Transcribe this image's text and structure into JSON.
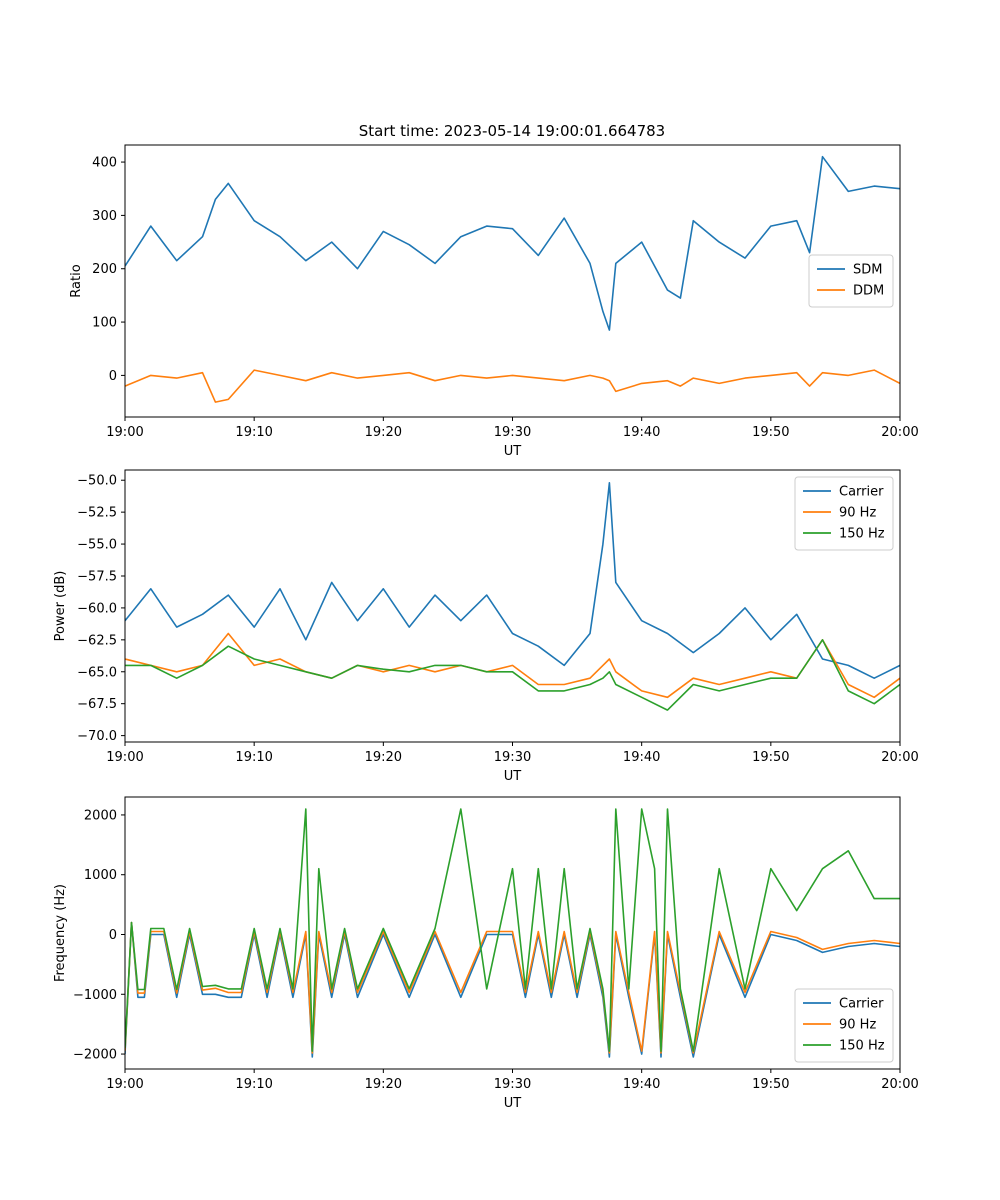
{
  "figure": {
    "title": "Start time: 2023-05-14 19:00:01.664783"
  },
  "chart_data": [
    {
      "type": "line",
      "xlabel": "UT",
      "ylabel": "Ratio",
      "xlim": [
        "19:00",
        "20:00"
      ],
      "ylim": [
        -78,
        432
      ],
      "x_ticks": [
        "19:00",
        "19:10",
        "19:20",
        "19:30",
        "19:40",
        "19:50",
        "20:00"
      ],
      "y_ticks": [
        0,
        100,
        200,
        300,
        400
      ],
      "legend": "center-right",
      "x": [
        "19:00",
        "19:02",
        "19:04",
        "19:06",
        "19:07",
        "19:08",
        "19:10",
        "19:12",
        "19:14",
        "19:16",
        "19:18",
        "19:20",
        "19:22",
        "19:24",
        "19:26",
        "19:28",
        "19:30",
        "19:32",
        "19:34",
        "19:36",
        "19:37",
        "19:37.5",
        "19:38",
        "19:40",
        "19:42",
        "19:43",
        "19:44",
        "19:46",
        "19:48",
        "19:50",
        "19:52",
        "19:53",
        "19:54",
        "19:56",
        "19:58",
        "20:00"
      ],
      "series": [
        {
          "name": "SDM",
          "color": "#1f77b4",
          "values": [
            205,
            280,
            215,
            260,
            330,
            360,
            290,
            260,
            215,
            250,
            200,
            270,
            245,
            210,
            260,
            280,
            275,
            225,
            295,
            210,
            120,
            85,
            210,
            250,
            160,
            145,
            290,
            250,
            220,
            280,
            290,
            230,
            410,
            345,
            355,
            350
          ]
        },
        {
          "name": "DDM",
          "color": "#ff7f0e",
          "values": [
            -20,
            0,
            -5,
            5,
            -50,
            -45,
            10,
            0,
            -10,
            5,
            -5,
            0,
            5,
            -10,
            0,
            -5,
            0,
            -5,
            -10,
            0,
            -5,
            -10,
            -30,
            -15,
            -10,
            -20,
            -5,
            -15,
            -5,
            0,
            5,
            -20,
            5,
            0,
            10,
            -15
          ]
        }
      ]
    },
    {
      "type": "line",
      "xlabel": "UT",
      "ylabel": "Power (dB)",
      "xlim": [
        "19:00",
        "20:00"
      ],
      "ylim": [
        -70.5,
        -49.2
      ],
      "x_ticks": [
        "19:00",
        "19:10",
        "19:20",
        "19:30",
        "19:40",
        "19:50",
        "20:00"
      ],
      "y_ticks": [
        -50.0,
        -52.5,
        -55.0,
        -57.5,
        -60.0,
        -62.5,
        -65.0,
        -67.5,
        -70.0
      ],
      "y_tick_labels": [
        "−50.0",
        "−52.5",
        "−55.0",
        "−57.5",
        "−60.0",
        "−62.5",
        "−65.0",
        "−67.5",
        "−70.0"
      ],
      "legend": "top-right",
      "x": [
        "19:00",
        "19:02",
        "19:04",
        "19:06",
        "19:08",
        "19:10",
        "19:12",
        "19:14",
        "19:16",
        "19:18",
        "19:20",
        "19:22",
        "19:24",
        "19:26",
        "19:28",
        "19:30",
        "19:32",
        "19:34",
        "19:36",
        "19:37",
        "19:37.5",
        "19:38",
        "19:40",
        "19:42",
        "19:44",
        "19:46",
        "19:48",
        "19:50",
        "19:52",
        "19:54",
        "19:56",
        "19:58",
        "20:00"
      ],
      "series": [
        {
          "name": "Carrier",
          "color": "#1f77b4",
          "values": [
            -61,
            -58.5,
            -61.5,
            -60.5,
            -59,
            -61.5,
            -58.5,
            -62.5,
            -58,
            -61,
            -58.5,
            -61.5,
            -59,
            -61,
            -59,
            -62,
            -63,
            -64.5,
            -62,
            -55,
            -50.2,
            -58,
            -61,
            -62,
            -63.5,
            -62,
            -60,
            -62.5,
            -60.5,
            -64,
            -64.5,
            -65.5,
            -64.5
          ]
        },
        {
          "name": "90 Hz",
          "color": "#ff7f0e",
          "values": [
            -64,
            -64.5,
            -65,
            -64.5,
            -62,
            -64.5,
            -64,
            -65,
            -65.5,
            -64.5,
            -65,
            -64.5,
            -65,
            -64.5,
            -65,
            -64.5,
            -66,
            -66,
            -65.5,
            -64.5,
            -64,
            -65,
            -66.5,
            -67,
            -65.5,
            -66,
            -65.5,
            -65,
            -65.5,
            -62.5,
            -66,
            -67,
            -65.5
          ]
        },
        {
          "name": "150 Hz",
          "color": "#2ca02c",
          "values": [
            -64.5,
            -64.5,
            -65.5,
            -64.5,
            -63,
            -64,
            -64.5,
            -65,
            -65.5,
            -64.5,
            -64.8,
            -65,
            -64.5,
            -64.5,
            -65,
            -65,
            -66.5,
            -66.5,
            -66,
            -65.5,
            -65,
            -66,
            -67,
            -68,
            -66,
            -66.5,
            -66,
            -65.5,
            -65.5,
            -62.5,
            -66.5,
            -67.5,
            -66
          ]
        }
      ]
    },
    {
      "type": "line",
      "xlabel": "UT",
      "ylabel": "Frequency (Hz)",
      "xlim": [
        "19:00",
        "20:00"
      ],
      "ylim": [
        -2250,
        2300
      ],
      "x_ticks": [
        "19:00",
        "19:10",
        "19:20",
        "19:30",
        "19:40",
        "19:50",
        "20:00"
      ],
      "y_ticks": [
        -2000,
        -1000,
        0,
        1000,
        2000
      ],
      "y_tick_labels": [
        "−2000",
        "−1000",
        "0",
        "1000",
        "2000"
      ],
      "legend": "bottom-right",
      "x": [
        "19:00",
        "19:00.5",
        "19:01",
        "19:01.5",
        "19:02",
        "19:03",
        "19:04",
        "19:05",
        "19:06",
        "19:07",
        "19:08",
        "19:09",
        "19:10",
        "19:11",
        "19:12",
        "19:13",
        "19:14",
        "19:14.5",
        "19:15",
        "19:16",
        "19:17",
        "19:18",
        "19:20",
        "19:22",
        "19:24",
        "19:26",
        "19:28",
        "19:30",
        "19:31",
        "19:32",
        "19:33",
        "19:34",
        "19:35",
        "19:36",
        "19:37",
        "19:37.5",
        "19:38",
        "19:39",
        "19:40",
        "19:41",
        "19:41.5",
        "19:42",
        "19:43",
        "19:44",
        "19:46",
        "19:48",
        "19:50",
        "19:52",
        "19:54",
        "19:56",
        "19:58",
        "20:00"
      ],
      "series": [
        {
          "name": "Carrier",
          "color": "#1f77b4",
          "values": [
            -2000,
            200,
            -1050,
            -1050,
            0,
            0,
            -1050,
            0,
            -1000,
            -1000,
            -1050,
            -1050,
            0,
            -1050,
            0,
            -1050,
            0,
            -2050,
            0,
            -1050,
            0,
            -1050,
            0,
            -1050,
            0,
            -1050,
            0,
            0,
            -1050,
            0,
            -1050,
            0,
            -1050,
            0,
            -1050,
            -2050,
            0,
            -1050,
            -2000,
            0,
            -2050,
            0,
            -1050,
            -2050,
            0,
            -1050,
            0,
            -100,
            -300,
            -200,
            -150,
            -200
          ]
        },
        {
          "name": "90 Hz",
          "color": "#ff7f0e",
          "values": [
            -1950,
            200,
            -980,
            -980,
            50,
            50,
            -980,
            50,
            -930,
            -900,
            -970,
            -970,
            50,
            -970,
            50,
            -970,
            50,
            -1980,
            50,
            -970,
            50,
            -970,
            50,
            -970,
            50,
            -970,
            50,
            50,
            -970,
            50,
            -970,
            50,
            -970,
            50,
            -970,
            -1980,
            50,
            -970,
            -1950,
            50,
            -1980,
            50,
            -970,
            -1980,
            50,
            -970,
            50,
            -50,
            -250,
            -150,
            -100,
            -150
          ]
        },
        {
          "name": "150 Hz",
          "color": "#2ca02c",
          "values": [
            -1900,
            200,
            -920,
            -920,
            100,
            100,
            -920,
            100,
            -870,
            -850,
            -910,
            -910,
            100,
            -910,
            100,
            -910,
            2100,
            -1950,
            1100,
            -910,
            100,
            -910,
            100,
            -910,
            100,
            2100,
            -910,
            1100,
            -910,
            1100,
            -910,
            1100,
            -910,
            100,
            -910,
            -1950,
            2100,
            -910,
            2100,
            1100,
            -1950,
            2100,
            -910,
            -1950,
            1100,
            -910,
            1100,
            400,
            1100,
            1400,
            600,
            600
          ]
        }
      ]
    }
  ]
}
